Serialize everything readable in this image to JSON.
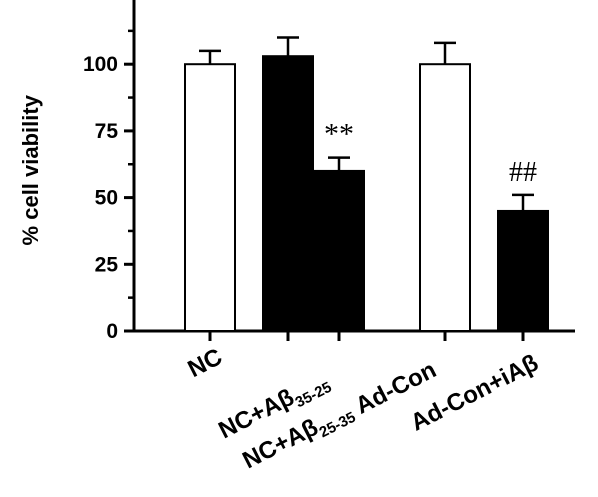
{
  "chart_data": {
    "type": "bar",
    "title": "",
    "xlabel": "",
    "ylabel": "% cell viability",
    "ylim": [
      0,
      125
    ],
    "yticks": [
      0,
      25,
      50,
      75,
      100
    ],
    "categories": [
      {
        "main": "NC",
        "sub": "",
        "tail": ""
      },
      {
        "main": "NC+Aβ",
        "sub": "35-25",
        "tail": ""
      },
      {
        "main": "NC+Aβ",
        "sub": "25-35",
        "tail": ""
      },
      {
        "main": "Ad-Con",
        "sub": "",
        "tail": ""
      },
      {
        "main": "Ad-Con+iAβ",
        "sub": "",
        "tail": ""
      }
    ],
    "values": [
      100,
      103,
      60,
      100,
      45
    ],
    "errors": [
      5,
      7,
      5,
      8,
      6
    ],
    "fills": [
      "#ffffff",
      "#000000",
      "#000000",
      "#ffffff",
      "#000000"
    ],
    "annotations": [
      "",
      "",
      "**",
      "",
      "##"
    ],
    "grid": false,
    "legend": "none"
  }
}
